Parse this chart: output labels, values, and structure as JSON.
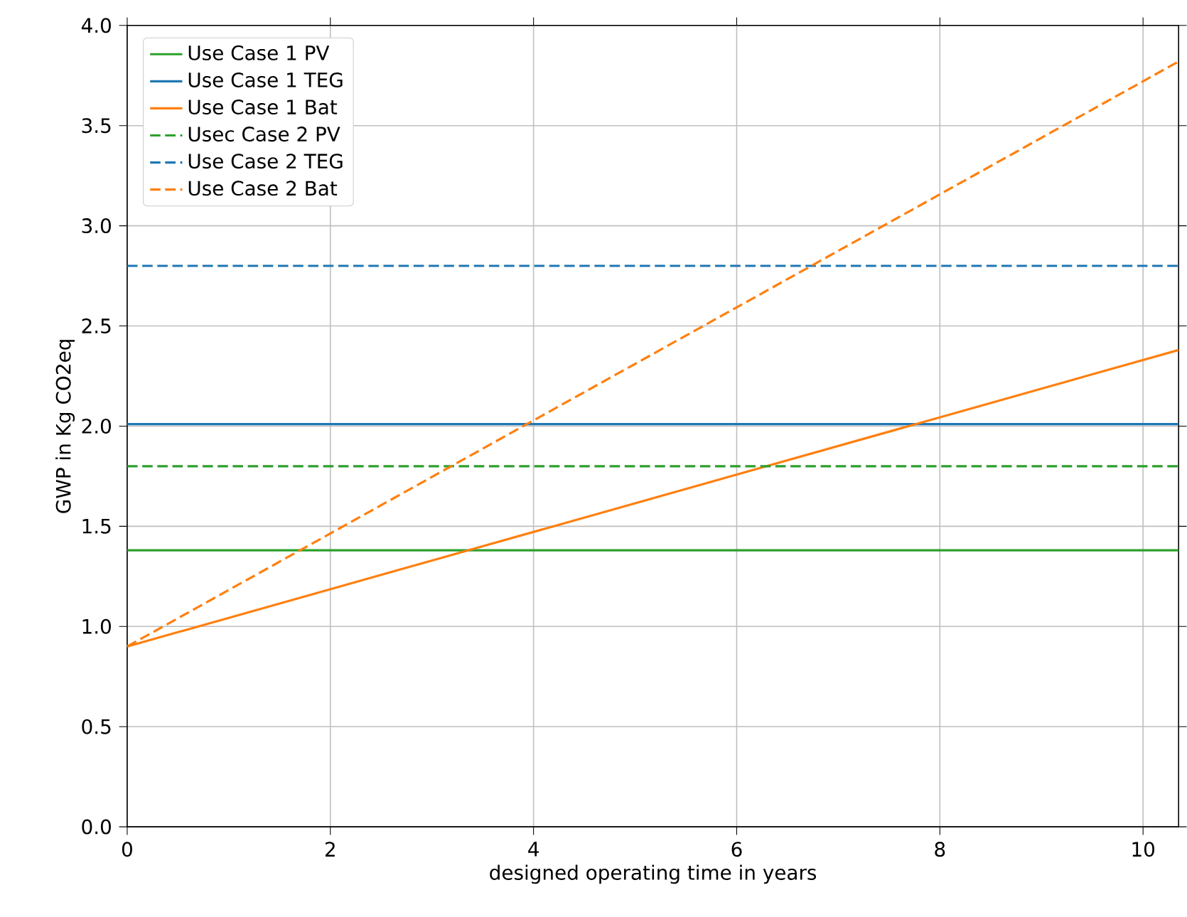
{
  "chart_data": {
    "type": "line",
    "xlabel": "designed operating time in years",
    "ylabel": "GWP in Kg CO2eq",
    "xlim": [
      0,
      10.35
    ],
    "ylim": [
      0,
      4
    ],
    "xticks": [
      0,
      2,
      4,
      6,
      8,
      10
    ],
    "yticks": [
      {
        "value": 0,
        "label": "0.0"
      },
      {
        "value": 0.5,
        "label": "0.5"
      },
      {
        "value": 1,
        "label": "1.0"
      },
      {
        "value": 1.5,
        "label": "1.5"
      },
      {
        "value": 2,
        "label": "2.0"
      },
      {
        "value": 2.5,
        "label": "2.5"
      },
      {
        "value": 3,
        "label": "3.0"
      },
      {
        "value": 3.5,
        "label": "3.5"
      },
      {
        "value": 4,
        "label": "4.0"
      }
    ],
    "grid": true,
    "legend": "top left",
    "marker": "none",
    "x": [
      0,
      10.35
    ],
    "series": [
      {
        "name": "Use Case 1 PV",
        "color": "#2ca02c",
        "line_style": "solid",
        "values": [
          1.38,
          1.38
        ]
      },
      {
        "name": "Use Case 1 TEG",
        "color": "#1f77b4",
        "line_style": "solid",
        "values": [
          2.01,
          2.01
        ]
      },
      {
        "name": "Use Case 1 Bat",
        "color": "#ff7f0e",
        "line_style": "solid",
        "values": [
          0.9,
          2.38
        ]
      },
      {
        "name": "Usec Case 2 PV",
        "color": "#2ca02c",
        "line_style": "dashed",
        "values": [
          1.8,
          1.8
        ]
      },
      {
        "name": "Use Case 2 TEG",
        "color": "#1f77b4",
        "line_style": "dashed",
        "values": [
          2.8,
          2.8
        ]
      },
      {
        "name": "Use Case 2 Bat",
        "color": "#ff7f0e",
        "line_style": "dashed",
        "values": [
          0.9,
          3.82
        ]
      }
    ]
  }
}
